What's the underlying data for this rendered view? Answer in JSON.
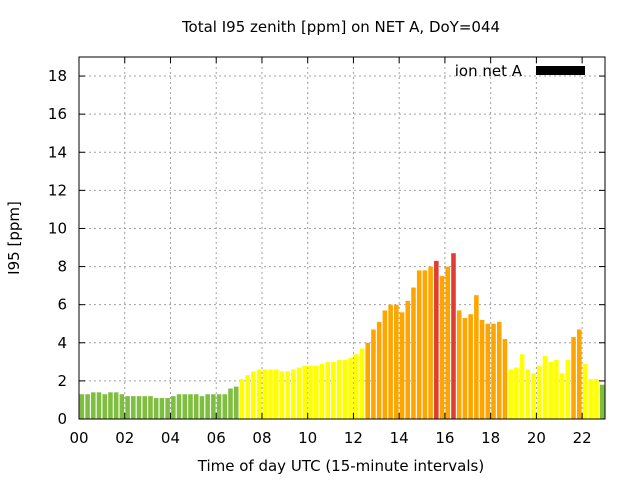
{
  "chart_data": {
    "type": "bar",
    "title": "Total I95 zenith [ppm] on NET A, DoY=044",
    "xlabel": "Time of day UTC (15-minute intervals)",
    "ylabel": "I95 [ppm]",
    "xlim": [
      0,
      23
    ],
    "ylim": [
      0,
      19
    ],
    "x_ticks": [
      0,
      2,
      4,
      6,
      8,
      10,
      12,
      14,
      16,
      18,
      20,
      22
    ],
    "x_tick_labels": [
      "00",
      "02",
      "04",
      "06",
      "08",
      "10",
      "12",
      "14",
      "16",
      "18",
      "20",
      "22"
    ],
    "y_ticks": [
      0,
      2,
      4,
      6,
      8,
      10,
      12,
      14,
      16,
      18
    ],
    "y_tick_labels": [
      "0",
      "2",
      "4",
      "6",
      "8",
      "10",
      "12",
      "14",
      "16",
      "18"
    ],
    "grid": true,
    "legend_position": "top-right",
    "series": [
      {
        "name": "ion net A",
        "legend_color": "#000000",
        "interval_hours": 0.25,
        "values": [
          1.3,
          1.3,
          1.4,
          1.4,
          1.3,
          1.4,
          1.4,
          1.3,
          1.2,
          1.2,
          1.2,
          1.2,
          1.2,
          1.1,
          1.1,
          1.1,
          1.2,
          1.3,
          1.3,
          1.3,
          1.3,
          1.2,
          1.3,
          1.3,
          1.3,
          1.3,
          1.6,
          1.7,
          2.1,
          2.3,
          2.5,
          2.6,
          2.6,
          2.6,
          2.6,
          2.5,
          2.5,
          2.6,
          2.7,
          2.8,
          2.8,
          2.8,
          2.9,
          3.0,
          3.0,
          3.1,
          3.1,
          3.2,
          3.4,
          3.7,
          4.0,
          4.7,
          5.1,
          5.7,
          6.0,
          6.0,
          5.6,
          6.2,
          6.9,
          7.8,
          7.8,
          8.0,
          8.3,
          7.5,
          8.0,
          8.7,
          5.7,
          5.3,
          5.5,
          6.5,
          5.2,
          5.0,
          5.0,
          5.1,
          4.2,
          2.6,
          2.7,
          3.4,
          2.6,
          2.4,
          2.8,
          3.3,
          3.0,
          3.1,
          2.4,
          3.1,
          4.3,
          4.7,
          2.9,
          2.1,
          2.1,
          1.8,
          1.7,
          1.4,
          1.4,
          1.9
        ]
      }
    ],
    "level_colors": {
      "quiet": "#7fbf3f",
      "low": "#ffff00",
      "moderate": "#ffa500",
      "high": "#e03c31"
    },
    "level_thresholds": [
      2.0,
      4.0,
      8.2
    ]
  }
}
